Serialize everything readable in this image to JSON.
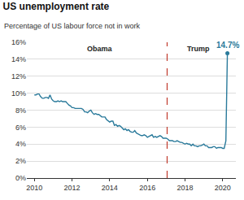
{
  "chart_data": {
    "type": "line",
    "title": "US unemployment rate",
    "subtitle": "Percentage of US labour force not in work",
    "x": [
      2010.0,
      2010.08,
      2010.17,
      2010.25,
      2010.33,
      2010.42,
      2010.5,
      2010.58,
      2010.67,
      2010.75,
      2010.83,
      2010.92,
      2011.0,
      2011.08,
      2011.17,
      2011.25,
      2011.33,
      2011.42,
      2011.5,
      2011.58,
      2011.67,
      2011.75,
      2011.83,
      2011.92,
      2012.0,
      2012.08,
      2012.17,
      2012.25,
      2012.33,
      2012.42,
      2012.5,
      2012.58,
      2012.67,
      2012.75,
      2012.83,
      2012.92,
      2013.0,
      2013.08,
      2013.17,
      2013.25,
      2013.33,
      2013.42,
      2013.5,
      2013.58,
      2013.67,
      2013.75,
      2013.83,
      2013.92,
      2014.0,
      2014.08,
      2014.17,
      2014.25,
      2014.33,
      2014.42,
      2014.5,
      2014.58,
      2014.67,
      2014.75,
      2014.83,
      2014.92,
      2015.0,
      2015.08,
      2015.17,
      2015.25,
      2015.33,
      2015.42,
      2015.5,
      2015.58,
      2015.67,
      2015.75,
      2015.83,
      2015.92,
      2016.0,
      2016.08,
      2016.17,
      2016.25,
      2016.33,
      2016.42,
      2016.5,
      2016.58,
      2016.67,
      2016.75,
      2016.83,
      2016.92,
      2017.0,
      2017.08,
      2017.17,
      2017.25,
      2017.33,
      2017.42,
      2017.5,
      2017.58,
      2017.67,
      2017.75,
      2017.83,
      2017.92,
      2018.0,
      2018.08,
      2018.17,
      2018.25,
      2018.33,
      2018.42,
      2018.5,
      2018.58,
      2018.67,
      2018.75,
      2018.83,
      2018.92,
      2019.0,
      2019.08,
      2019.17,
      2019.25,
      2019.33,
      2019.42,
      2019.5,
      2019.58,
      2019.67,
      2019.75,
      2019.83,
      2019.92,
      2020.0,
      2020.08,
      2020.17,
      2020.25
    ],
    "series": [
      {
        "name": "US unemployment rate",
        "color": "#2a7a9b",
        "values": [
          9.8,
          9.8,
          9.9,
          9.9,
          9.6,
          9.4,
          9.4,
          9.5,
          9.5,
          9.4,
          9.8,
          9.3,
          9.1,
          9.0,
          9.0,
          9.1,
          9.0,
          9.1,
          9.0,
          9.0,
          9.0,
          8.8,
          8.6,
          8.5,
          8.3,
          8.3,
          8.2,
          8.2,
          8.2,
          8.2,
          8.2,
          8.1,
          7.8,
          7.8,
          7.7,
          7.9,
          8.0,
          7.7,
          7.5,
          7.6,
          7.5,
          7.5,
          7.3,
          7.2,
          7.2,
          7.2,
          6.9,
          6.7,
          6.6,
          6.7,
          6.7,
          6.2,
          6.3,
          6.1,
          6.2,
          6.1,
          5.9,
          5.7,
          5.8,
          5.6,
          5.7,
          5.5,
          5.4,
          5.4,
          5.6,
          5.3,
          5.2,
          5.1,
          5.0,
          5.0,
          5.1,
          5.0,
          4.8,
          4.9,
          5.0,
          5.1,
          4.8,
          4.9,
          4.8,
          4.9,
          5.0,
          4.9,
          4.7,
          4.7,
          4.7,
          4.6,
          4.4,
          4.4,
          4.4,
          4.3,
          4.3,
          4.4,
          4.3,
          4.2,
          4.2,
          4.1,
          4.0,
          4.1,
          4.0,
          4.0,
          3.8,
          4.0,
          3.8,
          3.8,
          3.7,
          3.8,
          3.8,
          3.9,
          4.0,
          3.8,
          3.8,
          3.6,
          3.6,
          3.6,
          3.7,
          3.7,
          3.5,
          3.6,
          3.6,
          3.6,
          3.5,
          3.5,
          4.4,
          14.7
        ]
      }
    ],
    "xlim": [
      2009.6,
      2020.7
    ],
    "xticks": [
      2010,
      2012,
      2014,
      2016,
      2018,
      2020
    ],
    "ylim": [
      0,
      16
    ],
    "yticks": [
      {
        "value": 0,
        "label": "0%"
      },
      {
        "value": 2,
        "label": "2%"
      },
      {
        "value": 4,
        "label": "4%"
      },
      {
        "value": 6,
        "label": "6%"
      },
      {
        "value": 8,
        "label": "8%"
      },
      {
        "value": 10,
        "label": "10%"
      },
      {
        "value": 12,
        "label": "12%"
      },
      {
        "value": 14,
        "label": "14%"
      },
      {
        "value": 16,
        "label": "16%"
      }
    ],
    "grid": true,
    "period_divider": {
      "x": 2017.05,
      "color": "#c0392b",
      "line_style": "dash"
    },
    "periods": [
      {
        "label": "Obama",
        "x": 2013.5,
        "y": 15.2
      },
      {
        "label": "Trump",
        "x": 2018.7,
        "y": 15.2
      }
    ],
    "annotations": [
      {
        "text": "14.7%",
        "x": 2020.25,
        "y": 14.7
      }
    ]
  }
}
